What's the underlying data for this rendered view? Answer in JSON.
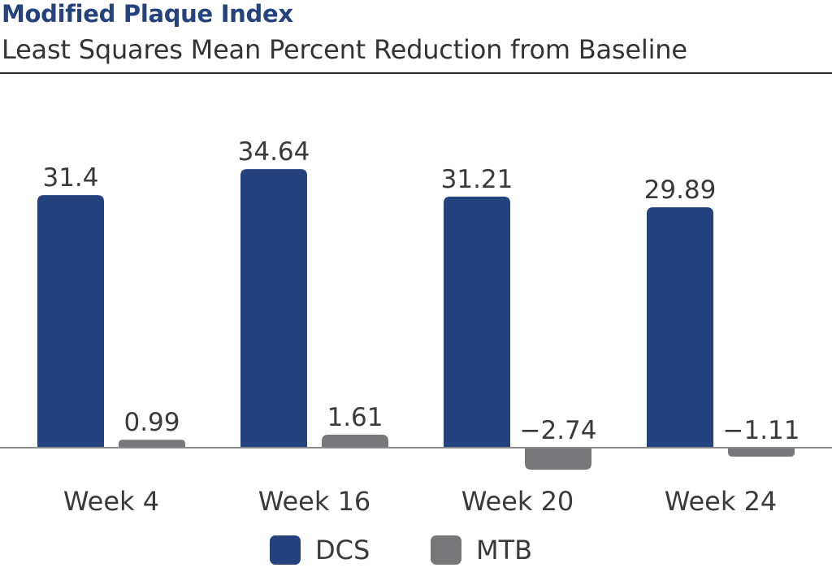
{
  "chart_data": {
    "type": "bar",
    "title": "Modified Plaque Index",
    "subtitle": "Least Squares Mean Percent Reduction from Baseline",
    "categories": [
      "Week 4",
      "Week 16",
      "Week 20",
      "Week 24"
    ],
    "series": [
      {
        "name": "DCS",
        "color": "#23427e",
        "values": [
          31.4,
          34.64,
          31.21,
          29.89
        ],
        "labels": [
          "31.4",
          "34.64",
          "31.21",
          "29.89"
        ]
      },
      {
        "name": "MTB",
        "color": "#777779",
        "values": [
          0.99,
          1.61,
          -2.74,
          -1.11
        ],
        "labels": [
          "0.99",
          "1.61",
          "−2.74",
          "−1.11"
        ]
      }
    ],
    "grid": false,
    "legend_position": "bottom-center"
  }
}
